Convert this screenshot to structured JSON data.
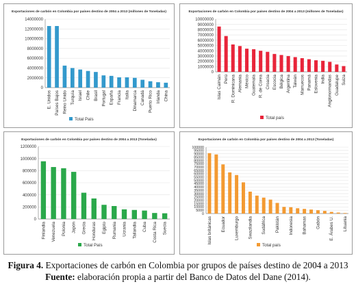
{
  "figure": {
    "caption_label": "Figura 4.",
    "caption_text": "Exportaciones de carbón en Colombia por grupos de países destino de 2004 a 2013",
    "source_label": "Fuente:",
    "source_text": "elaboración propia a partir del Banco de Datos del Dane (2014)."
  },
  "chart_data": [
    {
      "type": "bar",
      "title": "Exportaciones de carbón en Colombia por países destino de 2004 a 2013 (millones de Toneladas)",
      "legend": "Total País",
      "color": "#3399cc",
      "ylim": [
        0,
        14000000
      ],
      "yticks": [
        0,
        2000000,
        4000000,
        6000000,
        8000000,
        10000000,
        12000000,
        14000000
      ],
      "categories": [
        "E. Unidos",
        "Países Bajos",
        "Reino Unido",
        "Turquía",
        "Israel",
        "Chile",
        "Brasil",
        "Portugal",
        "España",
        "Francia",
        "Italia",
        "Dinamarca",
        "Canadá",
        "Puerto Rico",
        "Irlanda",
        "China"
      ],
      "values": [
        12600000,
        12600000,
        4500000,
        4000000,
        3700000,
        3400000,
        3200000,
        2500000,
        2400000,
        2100000,
        2100000,
        2000000,
        1600000,
        1300000,
        1100000,
        1000000
      ]
    },
    {
      "type": "bar",
      "title": "Exportaciones de carbón en Colombia por países destino de 2004 a 2013 (millones de Toneladas)",
      "legend": "Total país",
      "color": "#e8253a",
      "ylim": [
        0,
        10000000
      ],
      "yticks": [
        0,
        1000000,
        2000000,
        3000000,
        4000000,
        5000000,
        6000000,
        7000000,
        8000000,
        9000000,
        10000000
      ],
      "categories": [
        "Islas Caimán",
        "Perú",
        "R. Dominicana",
        "Alemania",
        "México",
        "Guatemala",
        "R. de Corea",
        "Croacia",
        "Escocia",
        "Bélgica",
        "Argentina",
        "Taiwán",
        "Marruecos",
        "Panamá",
        "Eslovenia",
        "India",
        "Anglonormandas",
        "Guadalupe",
        "Suiza"
      ],
      "values": [
        8600000,
        6800000,
        5200000,
        4900000,
        4400000,
        4300000,
        4000000,
        3800000,
        3400000,
        3200000,
        3000000,
        2800000,
        2600000,
        2400000,
        2200000,
        2100000,
        1900000,
        1400000,
        1100000
      ]
    },
    {
      "type": "bar",
      "title": "Exportaciones de carbón en Colombia por países destino de 2004 a 2013 (Toneladas)",
      "legend": "Total País",
      "color": "#2aa84a",
      "ylim": [
        0,
        1200000
      ],
      "yticks": [
        0,
        200000,
        400000,
        600000,
        800000,
        1000000,
        1200000
      ],
      "categories": [
        "Finlandia",
        "Venezuela",
        "Polonia",
        "Japón",
        "Grecia",
        "Honduras",
        "Egipto",
        "Rumania",
        "Ucrania",
        "Tailandia",
        "Cuba",
        "Costa Rica",
        "Suecia"
      ],
      "values": [
        955000,
        860000,
        840000,
        780000,
        435000,
        340000,
        235000,
        215000,
        160000,
        150000,
        140000,
        100000,
        95000
      ]
    },
    {
      "type": "bar",
      "title": "Exportaciones de carbón en Colombia por países destino de 2004 a 2013 (Toneladas)",
      "legend": "Total país",
      "color": "#f39a32",
      "ylim": [
        0,
        100000
      ],
      "yticks": [
        0,
        5000,
        10000,
        15000,
        20000,
        25000,
        30000,
        35000,
        40000,
        45000,
        50000,
        55000,
        60000,
        65000,
        70000,
        75000,
        80000,
        85000,
        90000,
        95000,
        100000
      ],
      "categories": [
        "Islas británicas",
        "",
        "Ecuador",
        "",
        "Luxemburgo",
        "",
        "Swazilandia",
        "",
        "Sudáfrica",
        "",
        "Pakistán",
        "",
        "Indonesia",
        "",
        "Bahamas",
        "",
        "Gabón",
        "",
        "E. Árabes U.",
        "",
        "Lituania"
      ],
      "values": [
        91000,
        89000,
        74000,
        62000,
        58000,
        47000,
        33000,
        27000,
        24000,
        21000,
        16000,
        10000,
        9500,
        8000,
        7000,
        6000,
        5000,
        4000,
        2500,
        1500,
        800
      ]
    }
  ]
}
